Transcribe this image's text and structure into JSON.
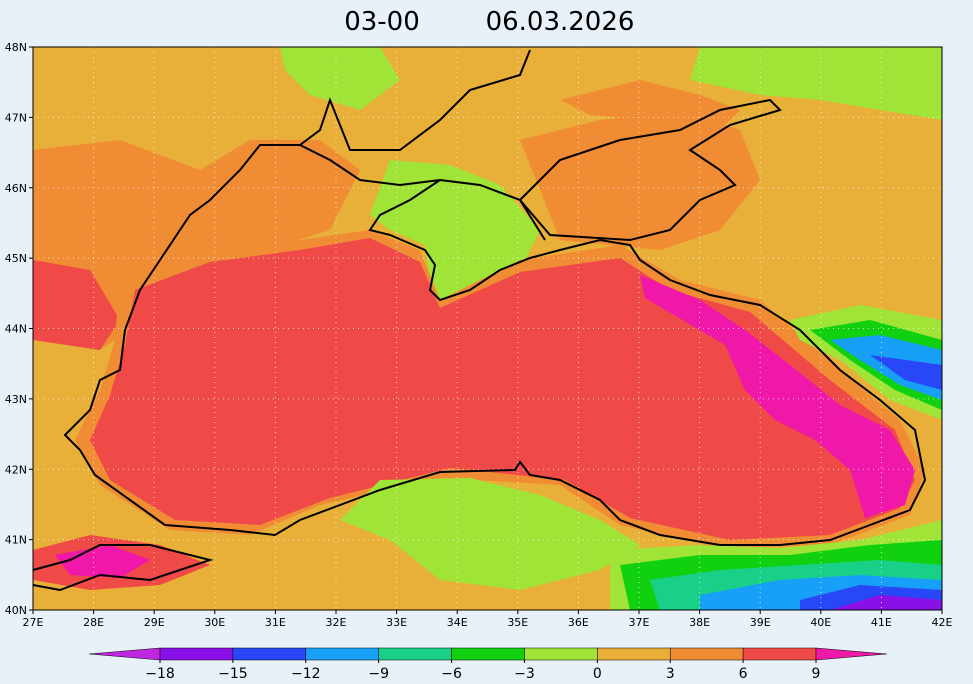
{
  "title": {
    "time": "03-00",
    "date": "06.03.2026"
  },
  "map": {
    "lonlim": [
      27,
      42
    ],
    "latlim": [
      40,
      48
    ],
    "lon_ticks": [
      {
        "value": 27,
        "label": "27E"
      },
      {
        "value": 28,
        "label": "28E"
      },
      {
        "value": 29,
        "label": "29E"
      },
      {
        "value": 30,
        "label": "30E"
      },
      {
        "value": 31,
        "label": "31E"
      },
      {
        "value": 32,
        "label": "32E"
      },
      {
        "value": 33,
        "label": "33E"
      },
      {
        "value": 34,
        "label": "34E"
      },
      {
        "value": 35,
        "label": "35E"
      },
      {
        "value": 36,
        "label": "36E"
      },
      {
        "value": 37,
        "label": "37E"
      },
      {
        "value": 38,
        "label": "38E"
      },
      {
        "value": 39,
        "label": "39E"
      },
      {
        "value": 40,
        "label": "40E"
      },
      {
        "value": 41,
        "label": "41E"
      },
      {
        "value": 42,
        "label": "42E"
      }
    ],
    "lat_ticks": [
      {
        "value": 40,
        "label": "40N"
      },
      {
        "value": 41,
        "label": "41N"
      },
      {
        "value": 42,
        "label": "42N"
      },
      {
        "value": 43,
        "label": "43N"
      },
      {
        "value": 44,
        "label": "44N"
      },
      {
        "value": 45,
        "label": "45N"
      },
      {
        "value": 46,
        "label": "46N"
      },
      {
        "value": 47,
        "label": "47N"
      },
      {
        "value": 48,
        "label": "48N"
      }
    ]
  },
  "colorbar": {
    "levels": [
      {
        "value": -18,
        "label": "−18"
      },
      {
        "value": -15,
        "label": "−15"
      },
      {
        "value": -12,
        "label": "−12"
      },
      {
        "value": -9,
        "label": "−9"
      },
      {
        "value": -6,
        "label": "−6"
      },
      {
        "value": -3,
        "label": "−3"
      },
      0,
      3,
      6,
      9
    ],
    "colors": [
      "#c028e0",
      "#8a10e8",
      "#2848f8",
      "#18a0f8",
      "#18d088",
      "#10d010",
      "#a0e438",
      "#e8b038",
      "#f08c34",
      "#f04a48",
      "#f018a8"
    ]
  }
}
